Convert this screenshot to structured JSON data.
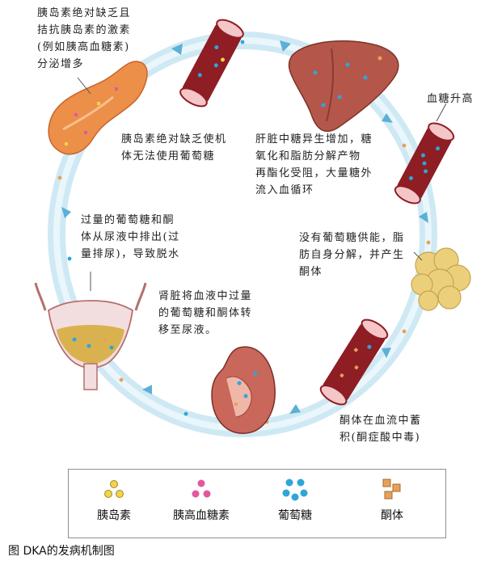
{
  "labels": {
    "pancreas": [
      "胰岛素绝对缺乏且",
      "拮抗胰岛素的激素",
      "(例如胰高血糖素)",
      "分泌增多"
    ],
    "no_glucose_use": [
      "胰岛素绝对缺乏使机",
      "体无法使用葡萄糖"
    ],
    "liver": [
      "肝脏中糖异生增加，糖",
      "氧化和脂肪分解产物",
      "再酯化受阻，大量糖外",
      "流入血循环"
    ],
    "blood_sugar_rise": [
      "血糖升高"
    ],
    "fat": [
      "没有葡萄糖供能，脂",
      "肪自身分解，并产生",
      "酮体"
    ],
    "ketone_accum": [
      "酮体在血流中蓄",
      "积(酮症酸中毒)"
    ],
    "kidney": [
      "肾脏将血液中过量",
      "的葡萄糖和酮体转",
      "移至尿液。"
    ],
    "bladder": [
      "过量的葡萄糖和酮",
      "体从尿液中排出(过",
      "量排尿)，导致脱水"
    ]
  },
  "legend": {
    "insulin": "胰岛素",
    "glucagon": "胰高血糖素",
    "glucose": "葡萄糖",
    "ketone": "酮体"
  },
  "caption": "图 DKA的发病机制图",
  "colors": {
    "insulin": "#f3d34a",
    "glucagon": "#e4579c",
    "glucose": "#2ea6d8",
    "ketone": "#e7a15a",
    "ring": "#bfe3f1",
    "vessel": "#8e1d24",
    "liver": "#b4574a",
    "fat": "#eccf7a",
    "pancreas": "#ec8f49"
  }
}
